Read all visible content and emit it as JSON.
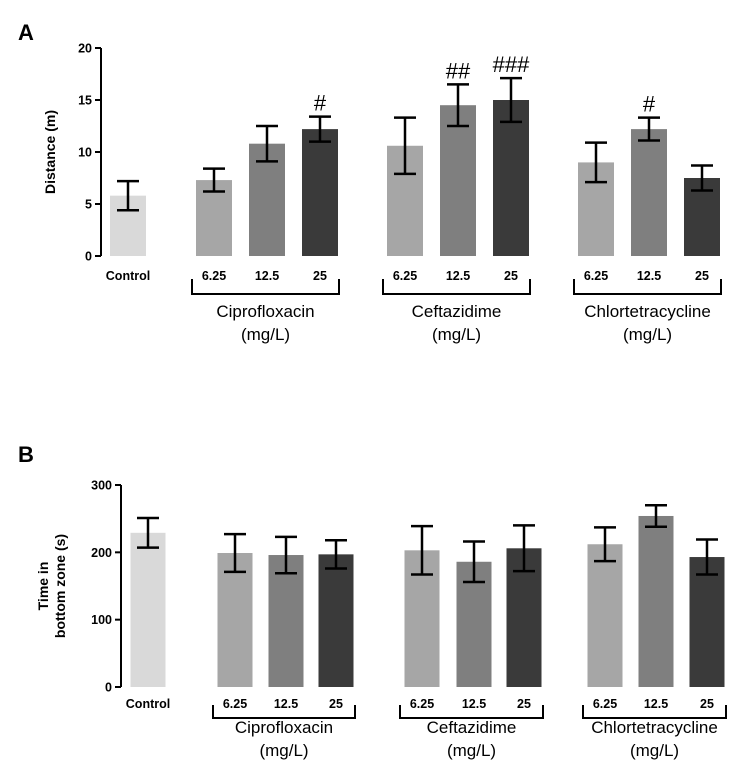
{
  "chart_data": [
    {
      "panel": "A",
      "type": "bar",
      "ylabel": "Distance (m)",
      "ylim": [
        0,
        20
      ],
      "yticks": [
        "0",
        "5",
        "10",
        "15",
        "20"
      ],
      "categories": [
        "Control",
        "6.25",
        "12.5",
        "25",
        "6.25",
        "12.5",
        "25",
        "6.25",
        "12.5",
        "25"
      ],
      "values": [
        5.8,
        7.3,
        10.8,
        12.2,
        10.6,
        14.5,
        15.0,
        9.0,
        12.2,
        7.5
      ],
      "errors": [
        1.4,
        1.1,
        1.7,
        1.2,
        2.7,
        2.0,
        2.1,
        1.9,
        1.1,
        1.2
      ],
      "annotations": [
        "",
        "",
        "",
        "#",
        "",
        "##",
        "###",
        "",
        "#",
        ""
      ],
      "groups": [
        {
          "name": "Ciprofloxacin",
          "unit": "(mg/L)"
        },
        {
          "name": "Ceftazidime",
          "unit": "(mg/L)"
        },
        {
          "name": "Chlortetracycline",
          "unit": "(mg/L)"
        }
      ],
      "colors": [
        "#d9d9d9",
        "#a6a6a6",
        "#7f7f7f",
        "#3a3a3a",
        "#a6a6a6",
        "#7f7f7f",
        "#3a3a3a",
        "#a6a6a6",
        "#7f7f7f",
        "#3a3a3a"
      ]
    },
    {
      "panel": "B",
      "type": "bar",
      "ylabel": "Time in bottom zone (s)",
      "ylabel_lines": [
        "Time in",
        "bottom zone (s)"
      ],
      "ylim": [
        0,
        300
      ],
      "yticks": [
        "0",
        "100",
        "200",
        "300"
      ],
      "categories": [
        "Control",
        "6.25",
        "12.5",
        "25",
        "6.25",
        "12.5",
        "25",
        "6.25",
        "12.5",
        "25"
      ],
      "values": [
        229,
        199,
        196,
        197,
        203,
        186,
        206,
        212,
        254,
        193
      ],
      "errors": [
        22,
        28,
        27,
        21,
        36,
        30,
        34,
        25,
        16,
        26
      ],
      "annotations": [
        "",
        "",
        "",
        "",
        "",
        "",
        "",
        "",
        "",
        ""
      ],
      "groups": [
        {
          "name": "Ciprofloxacin",
          "unit": "(mg/L)"
        },
        {
          "name": "Ceftazidime",
          "unit": "(mg/L)"
        },
        {
          "name": "Chlortetracycline",
          "unit": "(mg/L)"
        }
      ],
      "colors": [
        "#d9d9d9",
        "#a6a6a6",
        "#7f7f7f",
        "#3a3a3a",
        "#a6a6a6",
        "#7f7f7f",
        "#3a3a3a",
        "#a6a6a6",
        "#7f7f7f",
        "#3a3a3a"
      ]
    }
  ]
}
